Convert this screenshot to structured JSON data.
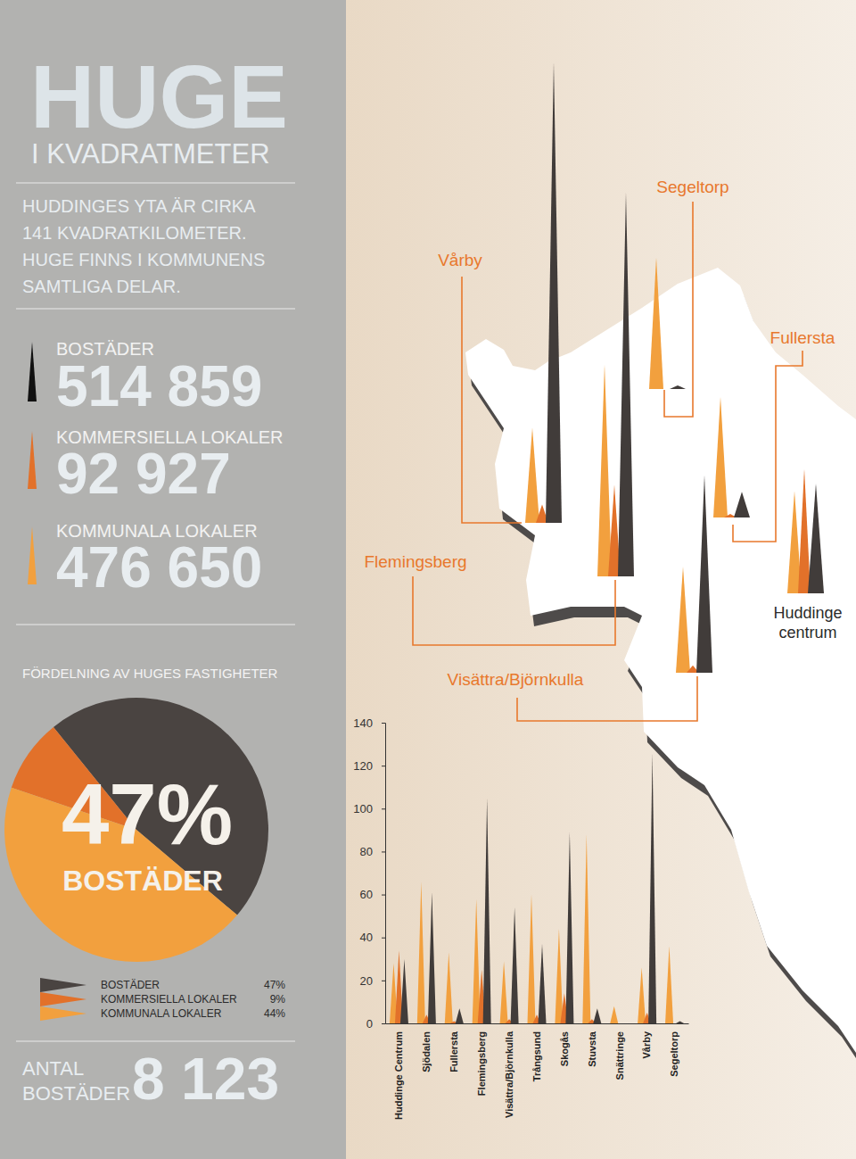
{
  "header": {
    "title": "HUGE",
    "subtitle": "I KVADRATMETER",
    "intro": [
      "HUDDINGES YTA ÄR CIRKA",
      "141 KVADRATKILOMETER.",
      "HUGE FINNS I KOMMUNENS",
      "SAMTLIGA DELAR."
    ]
  },
  "stats": [
    {
      "label": "BOSTÄDER",
      "value": "514 859"
    },
    {
      "label": "KOMMERSIELLA LOKALER",
      "value": "92 927"
    },
    {
      "label": "KOMMUNALA LOKALER",
      "value": "476 650"
    }
  ],
  "chart_data": [
    {
      "type": "pie",
      "title": "FÖRDELNING AV HUGES FASTIGHETER",
      "categories": [
        "BOSTÄDER",
        "KOMMERSIELLA LOKALER",
        "KOMMUNALA LOKALER"
      ],
      "values": [
        47,
        9,
        44
      ],
      "value_labels": [
        "47%",
        "9%",
        "44%"
      ],
      "colors": [
        "#4a4441",
        "#e2712a",
        "#f2a03e"
      ],
      "annotations": [
        "47%",
        "BOSTÄDER"
      ],
      "legend": "bottom"
    },
    {
      "type": "bar",
      "marker": "triangle",
      "categories": [
        "Huddinge Centrum",
        "Sjödalen",
        "Fullersta",
        "Flemingsberg",
        "Visättra/Björnkulla",
        "Trångsund",
        "Skogås",
        "Stuvsta",
        "Snättringe",
        "Vårby",
        "Segeltorp"
      ],
      "series": [
        {
          "color": "#f2a03e",
          "values": [
            28,
            66,
            33,
            58,
            29,
            60,
            44,
            88,
            8,
            26,
            36
          ]
        },
        {
          "color": "#e2712a",
          "values": [
            34,
            4,
            1,
            25,
            2,
            4,
            14,
            2,
            0,
            5,
            0
          ]
        },
        {
          "color": "#413c3a",
          "values": [
            30,
            61,
            7,
            105,
            54,
            37,
            89,
            7,
            0,
            126,
            1
          ]
        }
      ],
      "ylim": [
        0,
        140
      ],
      "yticks": [
        0,
        20,
        40,
        60,
        80,
        100,
        120,
        140
      ],
      "grid": false
    }
  ],
  "map": {
    "labels": [
      {
        "lines": [
          "Segeltorp"
        ]
      },
      {
        "lines": [
          "Vårby"
        ]
      },
      {
        "lines": [
          "Fullersta"
        ]
      },
      {
        "lines": [
          "Flemingsberg"
        ]
      },
      {
        "lines": [
          "Huddinge",
          "centrum"
        ]
      },
      {
        "lines": [
          "Visättra/Björnkulla"
        ]
      }
    ]
  },
  "footer": {
    "label": [
      "ANTAL",
      "BOSTÄDER"
    ],
    "value": "8 123"
  }
}
